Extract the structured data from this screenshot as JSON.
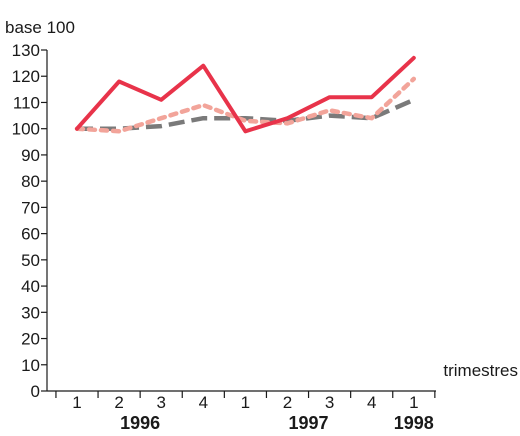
{
  "chart_data": {
    "type": "line",
    "ylabel": "base 100",
    "xlabel": "trimestres",
    "ylim": [
      0,
      130
    ],
    "y_ticks": [
      0,
      10,
      20,
      30,
      40,
      50,
      60,
      70,
      80,
      90,
      100,
      110,
      120,
      130
    ],
    "categories": [
      "1",
      "2",
      "3",
      "4",
      "1",
      "2",
      "3",
      "4",
      "1"
    ],
    "years": [
      {
        "label": "1996",
        "start_index": 0,
        "end_index": 3
      },
      {
        "label": "1997",
        "start_index": 4,
        "end_index": 7
      },
      {
        "label": "1998",
        "start_index": 8,
        "end_index": 8
      }
    ],
    "grid": false,
    "legend": "none",
    "series": [
      {
        "values": [
          100,
          118,
          111,
          124,
          99,
          104,
          112,
          112,
          127
        ],
        "color": "#e8334a",
        "style": "solid"
      },
      {
        "values": [
          100,
          99,
          104,
          109,
          103,
          102,
          107,
          104,
          119
        ],
        "color": "#f2a49a",
        "style": "dotted"
      },
      {
        "values": [
          100,
          100,
          101,
          104,
          104,
          103,
          105,
          104,
          111
        ],
        "color": "#7a7a7a",
        "style": "dashed"
      }
    ]
  }
}
